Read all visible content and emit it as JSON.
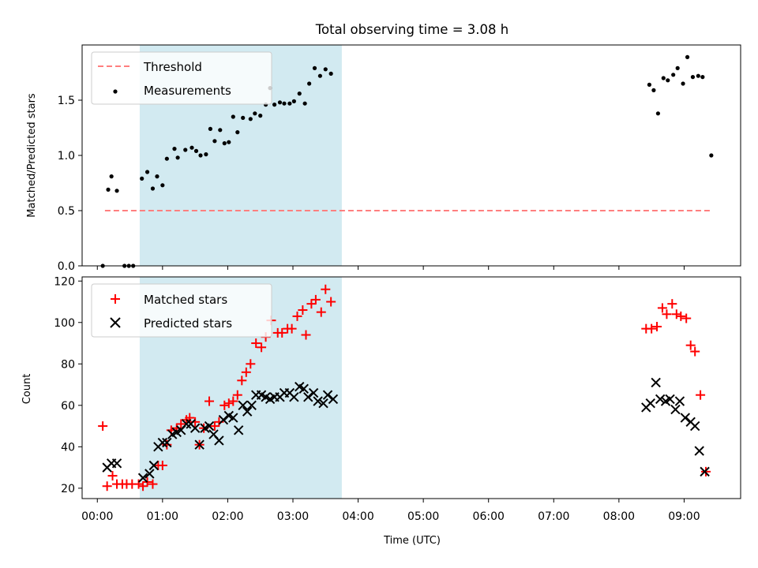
{
  "figure": {
    "title": "Total observing time = 3.08 h"
  },
  "chart_data": [
    {
      "type": "scatter",
      "ylabel": "Matched/Predicted stars",
      "xlabel": "",
      "xlim": [
        "23:46",
        "09:52"
      ],
      "ylim": [
        0,
        2.0
      ],
      "y_ticks": [
        0.0,
        0.5,
        1.0,
        1.5
      ],
      "y_tick_labels": [
        "0.0",
        "0.5",
        "1.0",
        "1.5"
      ],
      "shaded_span": [
        "00:39",
        "03:45"
      ],
      "shaded_color": "#add8e6",
      "threshold": {
        "name": "Threshold",
        "value": 0.5,
        "x_range": [
          "00:07",
          "09:25"
        ],
        "color": "#ff7f7f",
        "style": "dashed"
      },
      "legend": {
        "position": "top-left",
        "entries": [
          "Threshold",
          "Measurements"
        ]
      },
      "series": [
        {
          "name": "Measurements",
          "marker": "dot",
          "color": "#000000",
          "points": [
            [
              "00:05",
              0.0
            ],
            [
              "00:10",
              0.69
            ],
            [
              "00:13",
              0.81
            ],
            [
              "00:18",
              0.68
            ],
            [
              "00:25",
              0.0
            ],
            [
              "00:29",
              0.0
            ],
            [
              "00:33",
              0.0
            ],
            [
              "00:41",
              0.79
            ],
            [
              "00:46",
              0.85
            ],
            [
              "00:51",
              0.7
            ],
            [
              "00:55",
              0.81
            ],
            [
              "01:00",
              0.73
            ],
            [
              "01:04",
              0.97
            ],
            [
              "01:11",
              1.06
            ],
            [
              "01:14",
              0.98
            ],
            [
              "01:21",
              1.05
            ],
            [
              "01:27",
              1.07
            ],
            [
              "01:31",
              1.04
            ],
            [
              "01:35",
              1.0
            ],
            [
              "01:40",
              1.01
            ],
            [
              "01:44",
              1.24
            ],
            [
              "01:48",
              1.13
            ],
            [
              "01:53",
              1.23
            ],
            [
              "01:57",
              1.11
            ],
            [
              "02:01",
              1.12
            ],
            [
              "02:05",
              1.35
            ],
            [
              "02:09",
              1.21
            ],
            [
              "02:14",
              1.34
            ],
            [
              "02:21",
              1.33
            ],
            [
              "02:25",
              1.38
            ],
            [
              "02:30",
              1.36
            ],
            [
              "02:35",
              1.46
            ],
            [
              "02:39",
              1.61
            ],
            [
              "02:43",
              1.46
            ],
            [
              "02:48",
              1.48
            ],
            [
              "02:52",
              1.47
            ],
            [
              "02:57",
              1.47
            ],
            [
              "03:01",
              1.49
            ],
            [
              "03:06",
              1.56
            ],
            [
              "03:11",
              1.47
            ],
            [
              "03:15",
              1.65
            ],
            [
              "03:20",
              1.79
            ],
            [
              "03:25",
              1.72
            ],
            [
              "03:30",
              1.78
            ],
            [
              "03:35",
              1.74
            ],
            [
              "08:28",
              1.64
            ],
            [
              "08:32",
              1.59
            ],
            [
              "08:36",
              1.38
            ],
            [
              "08:41",
              1.7
            ],
            [
              "08:45",
              1.68
            ],
            [
              "08:50",
              1.73
            ],
            [
              "08:54",
              1.79
            ],
            [
              "08:59",
              1.65
            ],
            [
              "09:03",
              1.89
            ],
            [
              "09:08",
              1.71
            ],
            [
              "09:13",
              1.72
            ],
            [
              "09:17",
              1.71
            ],
            [
              "09:25",
              1.0
            ]
          ]
        }
      ]
    },
    {
      "type": "scatter",
      "ylabel": "Count",
      "xlabel": "Time (UTC)",
      "xlim": [
        "23:46",
        "09:52"
      ],
      "ylim": [
        15,
        122
      ],
      "y_ticks": [
        20,
        40,
        60,
        80,
        100,
        120
      ],
      "y_tick_labels": [
        "20",
        "40",
        "60",
        "80",
        "100",
        "120"
      ],
      "x_ticks": [
        "00:00",
        "01:00",
        "02:00",
        "03:00",
        "04:00",
        "05:00",
        "06:00",
        "07:00",
        "08:00",
        "09:00"
      ],
      "x_tick_labels": [
        "00:00",
        "01:00",
        "02:00",
        "03:00",
        "04:00",
        "05:00",
        "06:00",
        "07:00",
        "08:00",
        "09:00"
      ],
      "shaded_span": [
        "00:39",
        "03:45"
      ],
      "shaded_color": "#add8e6",
      "legend": {
        "position": "top-left",
        "entries": [
          "Matched stars",
          "Predicted stars"
        ]
      },
      "series": [
        {
          "name": "Matched stars",
          "marker": "plus",
          "color": "#ff0000",
          "points": [
            [
              "00:05",
              50
            ],
            [
              "00:09",
              21
            ],
            [
              "00:14",
              26
            ],
            [
              "00:18",
              22
            ],
            [
              "00:23",
              22
            ],
            [
              "00:27",
              22
            ],
            [
              "00:32",
              22
            ],
            [
              "00:38",
              22
            ],
            [
              "00:42",
              21
            ],
            [
              "00:46",
              23
            ],
            [
              "00:51",
              22
            ],
            [
              "00:56",
              31
            ],
            [
              "01:00",
              31
            ],
            [
              "01:04",
              41
            ],
            [
              "01:08",
              48
            ],
            [
              "01:13",
              49
            ],
            [
              "01:17",
              51
            ],
            [
              "01:22",
              53
            ],
            [
              "01:25",
              54
            ],
            [
              "01:30",
              52
            ],
            [
              "01:34",
              41
            ],
            [
              "01:38",
              49
            ],
            [
              "01:43",
              62
            ],
            [
              "01:48",
              50
            ],
            [
              "01:52",
              52
            ],
            [
              "01:57",
              60
            ],
            [
              "02:01",
              61
            ],
            [
              "02:05",
              62
            ],
            [
              "02:09",
              65
            ],
            [
              "02:13",
              72
            ],
            [
              "02:17",
              76
            ],
            [
              "02:21",
              80
            ],
            [
              "02:26",
              90
            ],
            [
              "02:31",
              88
            ],
            [
              "02:35",
              93
            ],
            [
              "02:40",
              101
            ],
            [
              "02:46",
              95
            ],
            [
              "02:50",
              95
            ],
            [
              "02:55",
              97
            ],
            [
              "02:59",
              97
            ],
            [
              "03:04",
              103
            ],
            [
              "03:09",
              106
            ],
            [
              "03:12",
              94
            ],
            [
              "03:17",
              109
            ],
            [
              "03:21",
              111
            ],
            [
              "03:26",
              105
            ],
            [
              "03:30",
              116
            ],
            [
              "03:35",
              110
            ],
            [
              "08:25",
              97
            ],
            [
              "08:30",
              97
            ],
            [
              "08:35",
              98
            ],
            [
              "08:40",
              107
            ],
            [
              "08:44",
              104
            ],
            [
              "08:49",
              109
            ],
            [
              "08:53",
              104
            ],
            [
              "08:57",
              103
            ],
            [
              "09:02",
              102
            ],
            [
              "09:06",
              89
            ],
            [
              "09:10",
              86
            ],
            [
              "09:15",
              65
            ],
            [
              "09:20",
              28
            ]
          ]
        },
        {
          "name": "Predicted stars",
          "marker": "x",
          "color": "#000000",
          "points": [
            [
              "00:09",
              30
            ],
            [
              "00:13",
              32
            ],
            [
              "00:18",
              32
            ],
            [
              "00:42",
              25
            ],
            [
              "00:48",
              27
            ],
            [
              "00:52",
              31
            ],
            [
              "00:56",
              40
            ],
            [
              "01:00",
              42
            ],
            [
              "01:04",
              42
            ],
            [
              "01:09",
              46
            ],
            [
              "01:13",
              47
            ],
            [
              "01:17",
              48
            ],
            [
              "01:22",
              51
            ],
            [
              "01:26",
              51
            ],
            [
              "01:30",
              49
            ],
            [
              "01:34",
              41
            ],
            [
              "01:39",
              49
            ],
            [
              "01:43",
              50
            ],
            [
              "01:47",
              46
            ],
            [
              "01:52",
              43
            ],
            [
              "01:56",
              53
            ],
            [
              "02:01",
              55
            ],
            [
              "02:05",
              54
            ],
            [
              "02:10",
              48
            ],
            [
              "02:14",
              60
            ],
            [
              "02:18",
              57
            ],
            [
              "02:22",
              60
            ],
            [
              "02:26",
              65
            ],
            [
              "02:31",
              65
            ],
            [
              "02:35",
              64
            ],
            [
              "02:39",
              63
            ],
            [
              "02:43",
              64
            ],
            [
              "02:48",
              64
            ],
            [
              "02:52",
              66
            ],
            [
              "02:57",
              66
            ],
            [
              "03:01",
              64
            ],
            [
              "03:06",
              69
            ],
            [
              "03:10",
              68
            ],
            [
              "03:14",
              64
            ],
            [
              "03:19",
              66
            ],
            [
              "03:23",
              62
            ],
            [
              "03:28",
              61
            ],
            [
              "03:32",
              65
            ],
            [
              "03:37",
              63
            ],
            [
              "08:25",
              59
            ],
            [
              "08:29",
              61
            ],
            [
              "08:34",
              71
            ],
            [
              "08:38",
              63
            ],
            [
              "08:43",
              62
            ],
            [
              "08:47",
              63
            ],
            [
              "08:52",
              58
            ],
            [
              "08:56",
              62
            ],
            [
              "09:01",
              54
            ],
            [
              "09:06",
              52
            ],
            [
              "09:10",
              50
            ],
            [
              "09:14",
              38
            ],
            [
              "09:19",
              28
            ]
          ]
        }
      ]
    }
  ]
}
